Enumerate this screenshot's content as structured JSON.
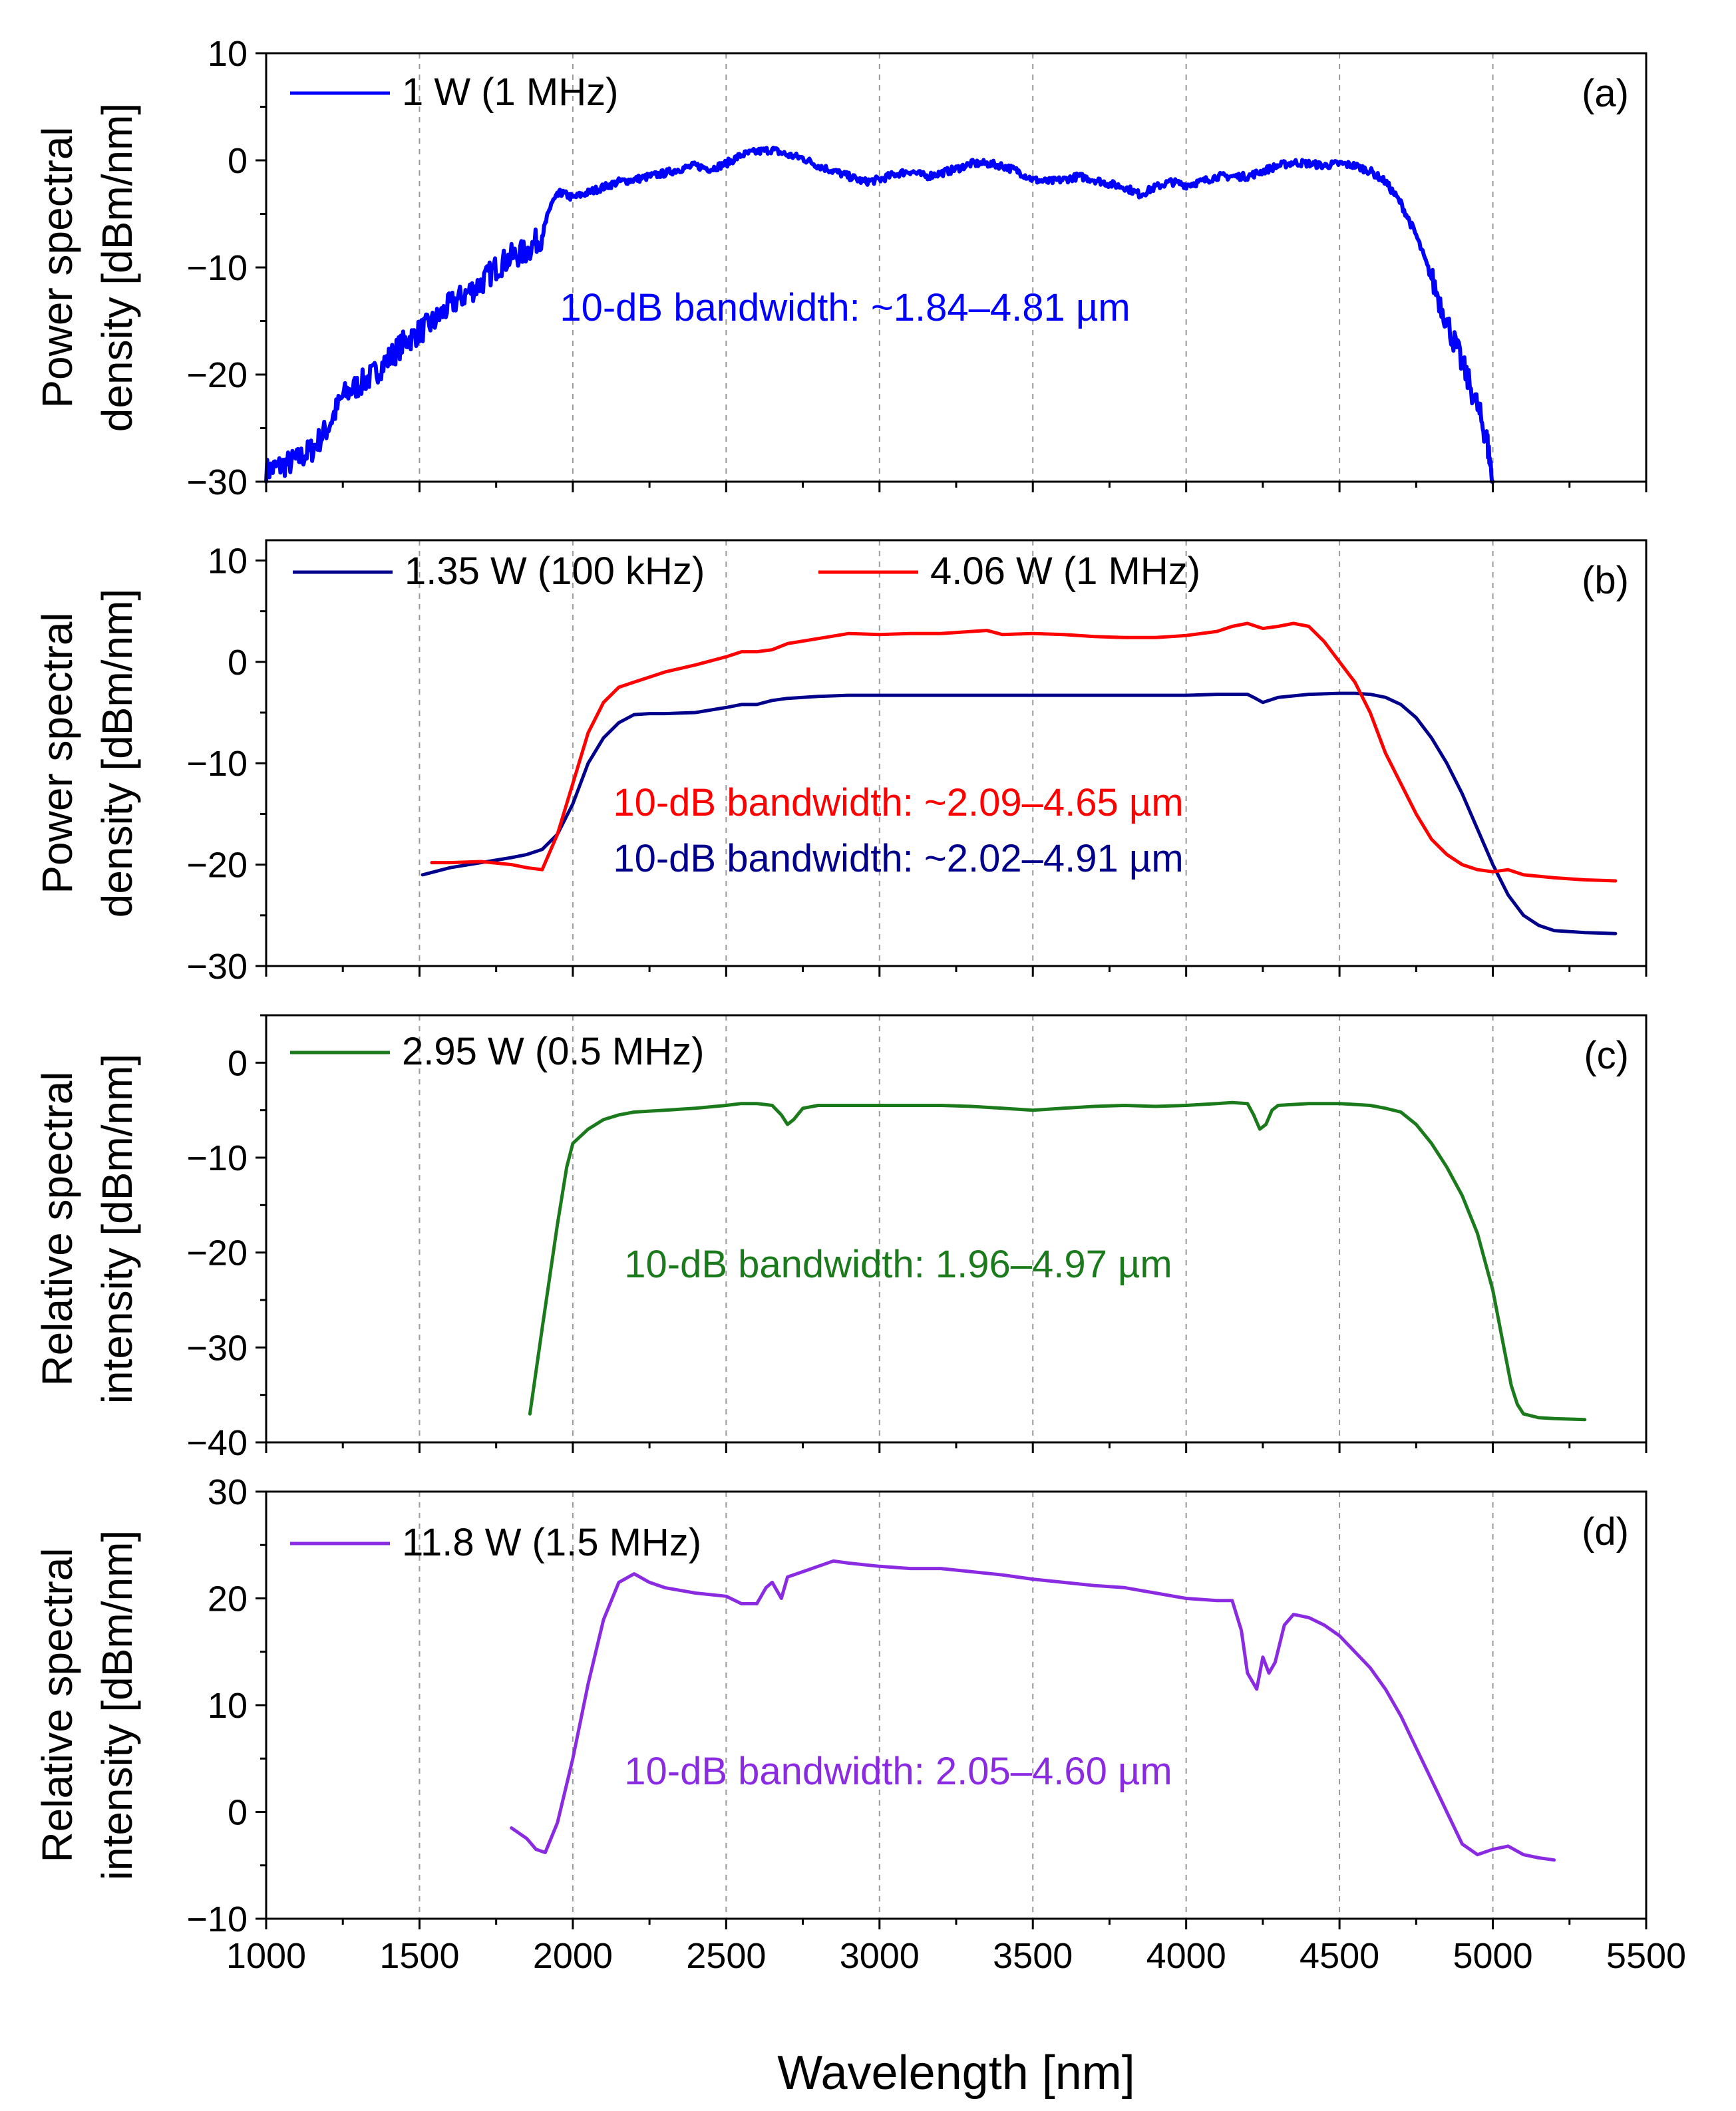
{
  "figure": {
    "xlabel": "Wavelength [nm]",
    "x_ticks": [
      1000,
      1500,
      2000,
      2500,
      3000,
      3500,
      4000,
      4500,
      5000,
      5500
    ]
  },
  "chart_data": [
    {
      "type": "line",
      "panel": "(a)",
      "ylabel_line1": "Power spectral",
      "ylabel_line2": "density  [dBm/nm]",
      "xlim": [
        1000,
        5500
      ],
      "ylim": [
        -30,
        10
      ],
      "y_ticks": [
        -30,
        -20,
        -10,
        0,
        10
      ],
      "y_tick_labels": [
        "−30",
        "−20",
        "−10",
        "0",
        "10"
      ],
      "grid_x": [
        1500,
        2000,
        2500,
        3000,
        3500,
        4000,
        4500,
        5000
      ],
      "legend": "top-left",
      "annotations": [
        {
          "text": "10-dB bandwidth: ~1.84–4.81 µm",
          "color": "#0000ff"
        }
      ],
      "series": [
        {
          "name": "1 W (1 MHz)",
          "color": "#0000ff",
          "noisy": true,
          "x": [
            1000,
            1050,
            1100,
            1150,
            1200,
            1250,
            1300,
            1350,
            1400,
            1450,
            1500,
            1550,
            1600,
            1650,
            1700,
            1750,
            1800,
            1850,
            1900,
            1930,
            1960,
            2000,
            2050,
            2100,
            2150,
            2200,
            2250,
            2300,
            2350,
            2400,
            2450,
            2500,
            2550,
            2600,
            2650,
            2700,
            2750,
            2800,
            2850,
            2900,
            2950,
            3000,
            3050,
            3100,
            3150,
            3200,
            3250,
            3300,
            3350,
            3400,
            3450,
            3500,
            3550,
            3600,
            3650,
            3700,
            3750,
            3800,
            3850,
            3900,
            3950,
            4000,
            4050,
            4100,
            4150,
            4200,
            4250,
            4300,
            4350,
            4400,
            4450,
            4500,
            4550,
            4600,
            4650,
            4700,
            4750,
            4800,
            4850,
            4900,
            4950,
            4980,
            5000
          ],
          "y": [
            -29,
            -28.5,
            -28,
            -27,
            -25,
            -22,
            -21,
            -20,
            -18.5,
            -17,
            -16,
            -15,
            -13.5,
            -12.5,
            -11.5,
            -10,
            -9,
            -8.5,
            -7,
            -4,
            -3,
            -3.5,
            -3,
            -2.5,
            -2,
            -1.8,
            -1.5,
            -1.2,
            -0.8,
            -0.5,
            -0.8,
            -0.3,
            0.5,
            0.8,
            1.0,
            0.5,
            0.2,
            -0.5,
            -1.0,
            -1.5,
            -2,
            -1.8,
            -1.3,
            -1.0,
            -1.5,
            -1.2,
            -0.8,
            -0.3,
            -0.3,
            -0.5,
            -1.0,
            -1.8,
            -2,
            -1.8,
            -1.5,
            -1.8,
            -2.2,
            -2.5,
            -3.2,
            -2.5,
            -2,
            -2.3,
            -2,
            -1.5,
            -1.5,
            -1.5,
            -1.0,
            -0.5,
            -0.2,
            -0.3,
            -0.5,
            -0.3,
            -0.5,
            -1.0,
            -2.0,
            -4.0,
            -7.0,
            -11.0,
            -15.0,
            -19.0,
            -23.0,
            -26.0,
            -30.0
          ]
        }
      ]
    },
    {
      "type": "line",
      "panel": "(b)",
      "ylabel_line1": "Power spectral",
      "ylabel_line2": "density [dBm/nm]",
      "xlim": [
        1000,
        5500
      ],
      "ylim": [
        -30,
        12
      ],
      "y_ticks": [
        -30,
        -20,
        -10,
        0,
        10
      ],
      "y_tick_labels": [
        "−30",
        "−20",
        "−10",
        "0",
        "10"
      ],
      "grid_x": [
        1500,
        2000,
        2500,
        3000,
        3500,
        4000,
        4500,
        5000
      ],
      "legend": "top-left",
      "annotations": [
        {
          "text": "10-dB bandwidth: ~2.09–4.65 µm",
          "color": "#ff0000"
        },
        {
          "text": "10-dB bandwidth: ~2.02–4.91 µm",
          "color": "#00008b"
        }
      ],
      "series": [
        {
          "name": "1.35 W (100 kHz)",
          "color": "#00008b",
          "x": [
            1510,
            1600,
            1700,
            1800,
            1850,
            1900,
            1950,
            2000,
            2050,
            2100,
            2150,
            2200,
            2250,
            2300,
            2400,
            2500,
            2550,
            2600,
            2650,
            2700,
            2800,
            2900,
            3000,
            3200,
            3400,
            3600,
            3800,
            4000,
            4100,
            4150,
            4200,
            4220,
            4250,
            4300,
            4400,
            4500,
            4550,
            4600,
            4650,
            4700,
            4750,
            4800,
            4850,
            4900,
            4950,
            5000,
            5050,
            5100,
            5150,
            5200,
            5300,
            5400
          ],
          "y": [
            -21,
            -20.3,
            -19.8,
            -19.3,
            -19,
            -18.5,
            -17,
            -14,
            -10,
            -7.5,
            -6,
            -5.2,
            -5.1,
            -5.1,
            -5,
            -4.5,
            -4.2,
            -4.2,
            -3.8,
            -3.6,
            -3.4,
            -3.3,
            -3.3,
            -3.3,
            -3.3,
            -3.3,
            -3.3,
            -3.3,
            -3.2,
            -3.2,
            -3.2,
            -3.5,
            -4,
            -3.5,
            -3.2,
            -3.1,
            -3.1,
            -3.2,
            -3.5,
            -4.2,
            -5.5,
            -7.5,
            -10,
            -13,
            -16.5,
            -20,
            -23,
            -25,
            -26,
            -26.5,
            -26.7,
            -26.8
          ]
        },
        {
          "name": "4.06 W (1 MHz)",
          "color": "#ff0000",
          "x": [
            1540,
            1600,
            1700,
            1800,
            1850,
            1900,
            1950,
            2000,
            2050,
            2100,
            2150,
            2200,
            2250,
            2300,
            2400,
            2500,
            2550,
            2600,
            2650,
            2700,
            2800,
            2900,
            3000,
            3100,
            3200,
            3300,
            3350,
            3400,
            3500,
            3600,
            3700,
            3800,
            3900,
            4000,
            4100,
            4150,
            4200,
            4250,
            4300,
            4350,
            4400,
            4450,
            4500,
            4550,
            4600,
            4650,
            4700,
            4750,
            4800,
            4850,
            4900,
            4950,
            5000,
            5050,
            5100,
            5200,
            5300,
            5400
          ],
          "y": [
            -19.8,
            -19.8,
            -19.7,
            -20,
            -20.3,
            -20.5,
            -17,
            -12,
            -7,
            -4,
            -2.5,
            -2,
            -1.5,
            -1,
            -0.3,
            0.5,
            1,
            1,
            1.2,
            1.8,
            2.3,
            2.8,
            2.7,
            2.8,
            2.8,
            3,
            3.1,
            2.7,
            2.8,
            2.7,
            2.5,
            2.4,
            2.4,
            2.6,
            3,
            3.5,
            3.8,
            3.3,
            3.5,
            3.8,
            3.5,
            2,
            0,
            -2,
            -5,
            -9,
            -12,
            -15,
            -17.5,
            -19,
            -20,
            -20.5,
            -20.7,
            -20.5,
            -21,
            -21.3,
            -21.5,
            -21.6
          ]
        }
      ]
    },
    {
      "type": "line",
      "panel": "(c)",
      "ylabel_line1": "Relative spectral",
      "ylabel_line2": "intensity [dBm/nm]",
      "xlim": [
        1000,
        5500
      ],
      "ylim": [
        -40,
        5
      ],
      "y_ticks": [
        -40,
        -30,
        -20,
        -10,
        0
      ],
      "y_tick_labels": [
        "−40",
        "−30",
        "−20",
        "−10",
        "0"
      ],
      "grid_x": [
        1500,
        2000,
        2500,
        3000,
        3500,
        4000,
        4500,
        5000
      ],
      "legend": "top-left",
      "annotations": [
        {
          "text": "10-dB bandwidth: 1.96–4.97 µm",
          "color": "#1b7a1b"
        }
      ],
      "series": [
        {
          "name": "2.95 W (0.5 MHz)",
          "color": "#1b7a1b",
          "x": [
            1860,
            1900,
            1950,
            1980,
            2000,
            2050,
            2100,
            2150,
            2200,
            2300,
            2400,
            2500,
            2550,
            2600,
            2650,
            2680,
            2700,
            2720,
            2750,
            2800,
            2900,
            3000,
            3100,
            3200,
            3300,
            3400,
            3500,
            3600,
            3700,
            3800,
            3900,
            4000,
            4100,
            4150,
            4200,
            4220,
            4240,
            4260,
            4280,
            4300,
            4350,
            4400,
            4500,
            4600,
            4650,
            4700,
            4750,
            4800,
            4850,
            4900,
            4950,
            5000,
            5030,
            5060,
            5080,
            5100,
            5150,
            5200,
            5300
          ],
          "y": [
            -37,
            -28,
            -17,
            -11,
            -8.5,
            -7,
            -6,
            -5.5,
            -5.2,
            -5,
            -4.8,
            -4.5,
            -4.3,
            -4.3,
            -4.5,
            -5.5,
            -6.5,
            -6,
            -4.8,
            -4.5,
            -4.5,
            -4.5,
            -4.5,
            -4.5,
            -4.6,
            -4.8,
            -5,
            -4.8,
            -4.6,
            -4.5,
            -4.6,
            -4.5,
            -4.3,
            -4.2,
            -4.3,
            -5.5,
            -7,
            -6.5,
            -5,
            -4.5,
            -4.4,
            -4.3,
            -4.3,
            -4.5,
            -4.8,
            -5.2,
            -6.5,
            -8.5,
            -11,
            -14,
            -18,
            -24,
            -29,
            -34,
            -36,
            -37,
            -37.4,
            -37.5,
            -37.6
          ]
        }
      ]
    },
    {
      "type": "line",
      "panel": "(d)",
      "ylabel_line1": "Relative spectral",
      "ylabel_line2": "intensity [dBm/nm]",
      "xlim": [
        1000,
        5500
      ],
      "ylim": [
        -10,
        30
      ],
      "y_ticks": [
        -10,
        0,
        10,
        20,
        30
      ],
      "y_tick_labels": [
        "−10",
        "0",
        "10",
        "20",
        "30"
      ],
      "grid_x": [
        1500,
        2000,
        2500,
        3000,
        3500,
        4000,
        4500,
        5000
      ],
      "legend": "top-left",
      "annotations": [
        {
          "text": "10-dB bandwidth: 2.05–4.60 µm",
          "color": "#8a2be2"
        }
      ],
      "series": [
        {
          "name": "11.8 W (1.5 MHz)",
          "color": "#8a2be2",
          "x": [
            1800,
            1850,
            1880,
            1910,
            1950,
            2000,
            2050,
            2100,
            2150,
            2200,
            2250,
            2300,
            2400,
            2500,
            2550,
            2600,
            2630,
            2650,
            2680,
            2700,
            2750,
            2800,
            2850,
            2900,
            3000,
            3100,
            3200,
            3300,
            3400,
            3500,
            3600,
            3700,
            3800,
            3900,
            4000,
            4100,
            4150,
            4180,
            4200,
            4230,
            4250,
            4270,
            4290,
            4320,
            4350,
            4400,
            4450,
            4500,
            4550,
            4600,
            4650,
            4700,
            4750,
            4800,
            4850,
            4900,
            4950,
            5000,
            5050,
            5100,
            5150,
            5200
          ],
          "y": [
            -1.5,
            -2.5,
            -3.5,
            -3.8,
            -1,
            5,
            12,
            18,
            21.5,
            22.3,
            21.5,
            21,
            20.5,
            20.2,
            19.5,
            19.5,
            21,
            21.5,
            20,
            22,
            22.5,
            23,
            23.5,
            23.3,
            23,
            22.8,
            22.8,
            22.5,
            22.2,
            21.8,
            21.5,
            21.2,
            21,
            20.5,
            20,
            19.8,
            19.8,
            17,
            13,
            11.5,
            14.5,
            13,
            14,
            17.5,
            18.5,
            18.2,
            17.5,
            16.5,
            15,
            13.5,
            11.5,
            9,
            6,
            3,
            0,
            -3,
            -4,
            -3.5,
            -3.2,
            -4,
            -4.3,
            -4.5
          ]
        }
      ]
    }
  ]
}
